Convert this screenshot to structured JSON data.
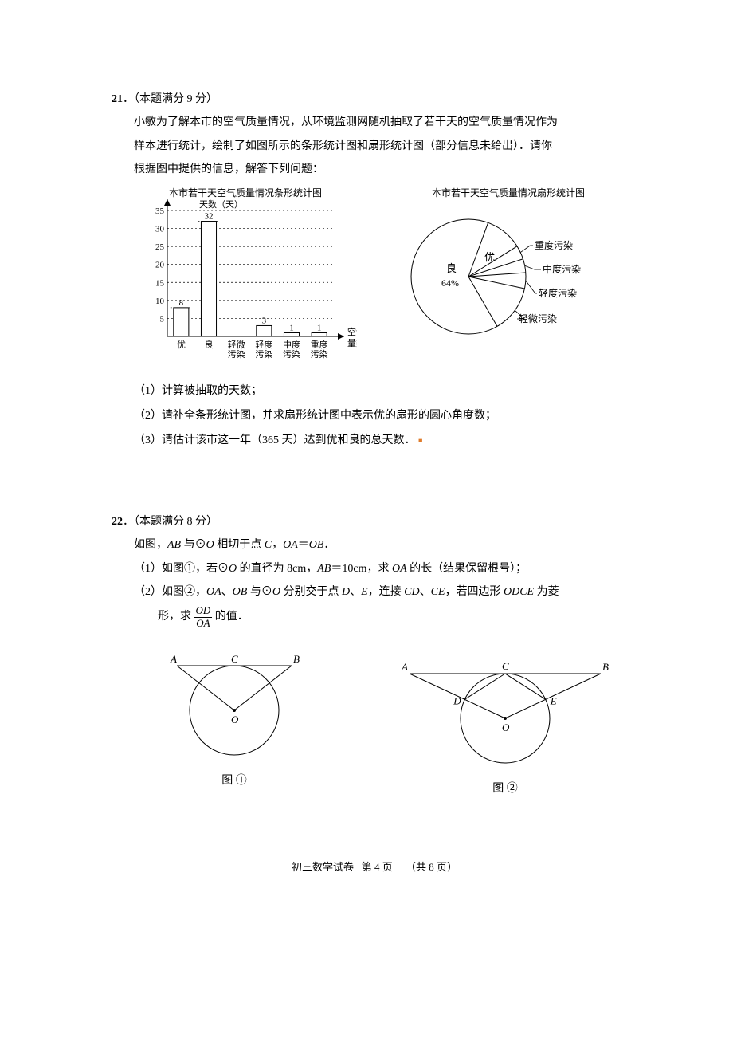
{
  "q21": {
    "number": "21",
    "score_label": "．（本题满分 9 分）",
    "intro1": "小敏为了解本市的空气质量情况，从环境监测网随机抽取了若干天的空气质量情况作为",
    "intro2": "样本进行统计，绘制了如图所示的条形统计图和扇形统计图（部分信息未给出）．请你",
    "intro3": "根据图中提供的信息，解答下列问题：",
    "bar_chart": {
      "title": "本市若干天空气质量情况条形统计图",
      "y_label": "天数（天）",
      "x_label_top": "空气质",
      "x_label_bot": "量类别",
      "ymax": 35,
      "ystep": 5,
      "categories": [
        "优",
        "良",
        "轻微\n污染",
        "轻度\n污染",
        "中度\n污染",
        "重度\n污染"
      ],
      "values": [
        8,
        32,
        null,
        3,
        1,
        1
      ],
      "bar_outline": "#000000",
      "bar_fill": "#ffffff",
      "grid_dash": "2,3",
      "axis_color": "#000000",
      "font_size": 11
    },
    "pie_chart": {
      "title": "本市若干天空气质量情况扇形统计图",
      "inner_labels": [
        "良",
        "64%",
        "优"
      ],
      "outer_labels": [
        "重度污染",
        "中度污染",
        "轻度污染",
        "轻微污染"
      ],
      "stroke": "#000000",
      "fill": "#ffffff"
    },
    "subs": {
      "s1": "（1）计算被抽取的天数；",
      "s2": "（2）请补全条形统计图，并求扇形统计图中表示优的扇形的圆心角度数；",
      "s3_a": "（3）请估计该市这一年（365 天）达到优和良的总天数．"
    }
  },
  "q22": {
    "number": "22",
    "score_label": "．（本题满分 8 分）",
    "line1_a": "如图，",
    "line1_b": " 与⊙",
    "line1_c": " 相切于点 ",
    "line1_d": "，",
    "line1_e": "＝",
    "line1_f": "．",
    "sub1_a": "（1）如图①，若⊙",
    "sub1_b": " 的直径为 8cm，",
    "sub1_c": "＝10cm，求 ",
    "sub1_d": " 的长（结果保留根号）；",
    "sub2_a": "（2）如图②，",
    "sub2_b": "、",
    "sub2_c": " 与⊙",
    "sub2_d": " 分别交于点 ",
    "sub2_e": "、",
    "sub2_f": "，连接 ",
    "sub2_g": "、",
    "sub2_h": "，若四边形 ",
    "sub2_i": " 为菱",
    "sub2_line2_a": "形，求",
    "sub2_line2_b": "的值．",
    "frac": {
      "num": "OD",
      "den": "OA"
    },
    "vars": {
      "AB": "AB",
      "O": "O",
      "C": "C",
      "OA": "OA",
      "OB": "OB",
      "D": "D",
      "E": "E",
      "CD": "CD",
      "CE": "CE",
      "ODCE": "ODCE"
    },
    "fig1": {
      "caption": "图 ①",
      "labels": {
        "A": "A",
        "B": "B",
        "C": "C",
        "O": "O"
      }
    },
    "fig2": {
      "caption": "图 ②",
      "labels": {
        "A": "A",
        "B": "B",
        "C": "C",
        "D": "D",
        "E": "E",
        "O": "O"
      }
    }
  },
  "footer": {
    "left": "初三数学试卷",
    "mid": "第  4  页",
    "right": "（共 8 页）"
  }
}
